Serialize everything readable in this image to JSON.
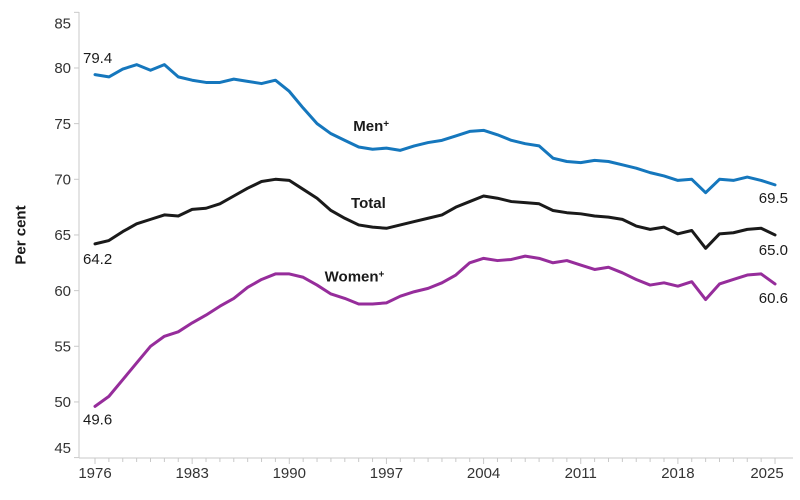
{
  "chart_data": {
    "type": "line",
    "title": "",
    "ylabel": "Per cent",
    "years": [
      1976,
      1977,
      1978,
      1979,
      1980,
      1981,
      1982,
      1983,
      1984,
      1985,
      1986,
      1987,
      1988,
      1989,
      1990,
      1991,
      1992,
      1993,
      1994,
      1995,
      1996,
      1997,
      1998,
      1999,
      2000,
      2001,
      2002,
      2003,
      2004,
      2005,
      2006,
      2007,
      2008,
      2009,
      2010,
      2011,
      2012,
      2013,
      2014,
      2015,
      2016,
      2017,
      2018,
      2019,
      2020,
      2021,
      2022,
      2023,
      2024,
      2025
    ],
    "y_axis": {
      "min": 45,
      "max": 85,
      "tick_labels": [
        "45",
        "50",
        "55",
        "60",
        "65",
        "70",
        "75",
        "80",
        "85"
      ]
    },
    "x_axis": {
      "tick_labels": [
        "1976",
        "1983",
        "1990",
        "1997",
        "2004",
        "2011",
        "2018",
        "2025"
      ]
    },
    "grid": false,
    "legend": "inline-series-labels",
    "series": [
      {
        "name": "Men",
        "footnote_marker": "+",
        "color": "#1577bd",
        "values": [
          79.4,
          79.2,
          79.9,
          80.3,
          79.8,
          80.3,
          79.2,
          78.9,
          78.7,
          78.7,
          79.0,
          78.8,
          78.6,
          78.9,
          77.9,
          76.4,
          75.0,
          74.1,
          73.5,
          72.9,
          72.7,
          72.8,
          72.6,
          73.0,
          73.3,
          73.5,
          73.9,
          74.3,
          74.4,
          74.0,
          73.5,
          73.2,
          73.0,
          71.9,
          71.6,
          71.5,
          71.7,
          71.6,
          71.3,
          71.0,
          70.6,
          70.3,
          69.9,
          70.0,
          68.8,
          70.0,
          69.9,
          70.2,
          69.9,
          69.5
        ],
        "start_label": "79.4",
        "end_label": "69.5",
        "label_year": 1995.9,
        "label_value": 74.35,
        "start_label_dy": -17,
        "end_label_dy": 13
      },
      {
        "name": "Total",
        "footnote_marker": "",
        "color": "#1a1a1a",
        "values": [
          64.2,
          64.5,
          65.3,
          66.0,
          66.4,
          66.8,
          66.7,
          67.3,
          67.4,
          67.8,
          68.5,
          69.2,
          69.8,
          70.0,
          69.9,
          69.1,
          68.3,
          67.2,
          66.5,
          65.9,
          65.7,
          65.6,
          65.9,
          66.2,
          66.5,
          66.8,
          67.5,
          68.0,
          68.5,
          68.3,
          68.0,
          67.9,
          67.8,
          67.2,
          67.0,
          66.9,
          66.7,
          66.6,
          66.4,
          65.8,
          65.5,
          65.7,
          65.1,
          65.4,
          63.8,
          65.1,
          65.2,
          65.5,
          65.6,
          65.0
        ],
        "start_label": "64.2",
        "end_label": "65.0",
        "label_year": 1995.7,
        "label_value": 67.4,
        "start_label_dy": 15,
        "end_label_dy": 15
      },
      {
        "name": "Women",
        "footnote_marker": "+",
        "color": "#962d9b",
        "values": [
          49.6,
          50.5,
          52.0,
          53.5,
          55.0,
          55.9,
          56.3,
          57.1,
          57.8,
          58.6,
          59.3,
          60.3,
          61.0,
          61.5,
          61.5,
          61.2,
          60.5,
          59.7,
          59.3,
          58.8,
          58.8,
          58.9,
          59.5,
          59.9,
          60.2,
          60.7,
          61.4,
          62.5,
          62.9,
          62.7,
          62.8,
          63.1,
          62.9,
          62.5,
          62.7,
          62.3,
          61.9,
          62.1,
          61.6,
          61.0,
          60.5,
          60.7,
          60.4,
          60.8,
          59.2,
          60.6,
          61.0,
          61.4,
          61.5,
          60.6
        ],
        "start_label": "49.6",
        "end_label": "60.6",
        "label_year": 1994.7,
        "label_value": 60.8,
        "start_label_dy": 13,
        "end_label_dy": 14
      }
    ]
  },
  "colors": {
    "axis": "#c9c9c9",
    "tick_text": "#333333",
    "annotation_text": "#1a1a1a"
  }
}
